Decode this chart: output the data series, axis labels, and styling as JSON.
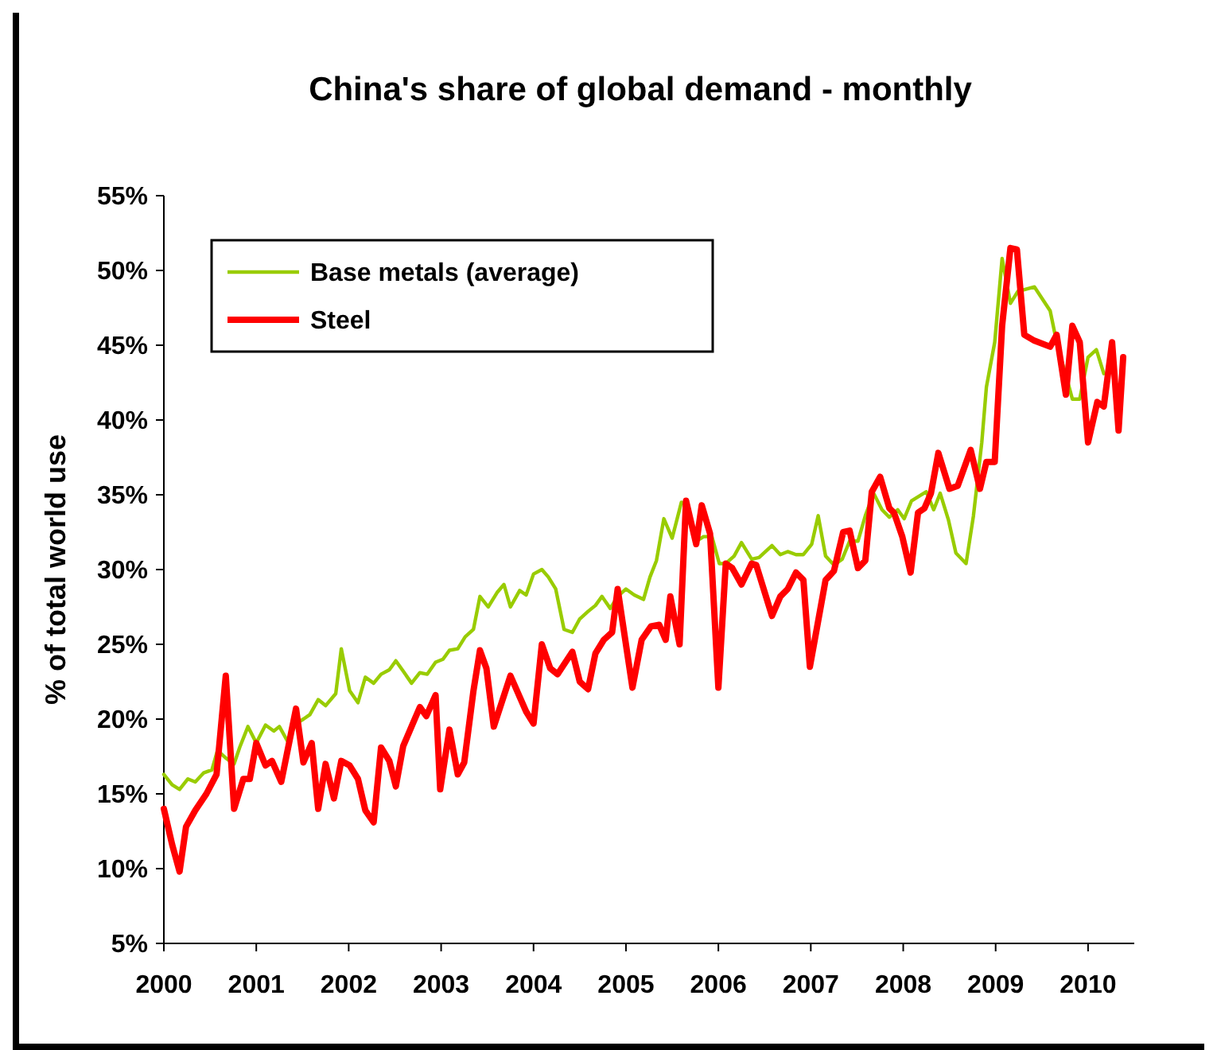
{
  "chart_data": {
    "type": "line",
    "title": "China's share of global demand - monthly",
    "ylabel": "% of total world use",
    "xlim": [
      2000,
      2010.5
    ],
    "xticks": [
      2000,
      2001,
      2002,
      2003,
      2004,
      2005,
      2006,
      2007,
      2008,
      2009,
      2010
    ],
    "ylim": [
      5,
      55
    ],
    "yticks": [
      {
        "value": 5,
        "label": "5%"
      },
      {
        "value": 10,
        "label": "10%"
      },
      {
        "value": 15,
        "label": "15%"
      },
      {
        "value": 20,
        "label": "20%"
      },
      {
        "value": 25,
        "label": "25%"
      },
      {
        "value": 30,
        "label": "30%"
      },
      {
        "value": 35,
        "label": "35%"
      },
      {
        "value": 40,
        "label": "40%"
      },
      {
        "value": 45,
        "label": "45%"
      },
      {
        "value": 50,
        "label": "50%"
      },
      {
        "value": 55,
        "label": "55%"
      }
    ],
    "grid": false,
    "legend": "top left",
    "marker": "none",
    "line_style": "solid",
    "series": [
      {
        "name": "Base metals (average)",
        "color": "#99cc00",
        "x": [
          2000.0,
          2000.09,
          2000.17,
          2000.26,
          2000.34,
          2000.43,
          2000.52,
          2000.58,
          2000.67,
          2000.76,
          2000.82,
          2000.91,
          2001.0,
          2001.1,
          2001.19,
          2001.25,
          2001.34,
          2001.43,
          2001.51,
          2001.58,
          2001.67,
          2001.75,
          2001.86,
          2001.92,
          2002.01,
          2002.1,
          2002.18,
          2002.27,
          2002.35,
          2002.44,
          2002.51,
          2002.59,
          2002.68,
          2002.77,
          2002.85,
          2002.94,
          2003.02,
          2003.09,
          2003.18,
          2003.26,
          2003.35,
          2003.42,
          2003.51,
          2003.61,
          2003.68,
          2003.75,
          2003.85,
          2003.92,
          2004.0,
          2004.09,
          2004.16,
          2004.24,
          2004.33,
          2004.42,
          2004.5,
          2004.59,
          2004.67,
          2004.74,
          2004.83,
          2004.91,
          2005.0,
          2005.09,
          2005.19,
          2005.26,
          2005.33,
          2005.41,
          2005.5,
          2005.6,
          2005.67,
          2005.76,
          2005.84,
          2005.93,
          2006.01,
          2006.08,
          2006.17,
          2006.25,
          2006.36,
          2006.44,
          2006.58,
          2006.67,
          2006.75,
          2006.84,
          2006.92,
          2007.01,
          2007.08,
          2007.16,
          2007.25,
          2007.34,
          2007.42,
          2007.51,
          2007.59,
          2007.68,
          2007.77,
          2007.85,
          2007.94,
          2008.01,
          2008.09,
          2008.25,
          2008.33,
          2008.4,
          2008.49,
          2008.57,
          2008.68,
          2008.76,
          2008.85,
          2008.9,
          2008.99,
          2009.07,
          2009.16,
          2009.24,
          2009.42,
          2009.59,
          2009.67,
          2009.76,
          2009.83,
          2009.91,
          2010.0,
          2010.09,
          2010.17
        ],
        "values": [
          16.3,
          15.6,
          15.3,
          16.0,
          15.8,
          16.4,
          16.6,
          17.9,
          17.4,
          17.0,
          18.1,
          19.5,
          18.4,
          19.6,
          19.2,
          19.5,
          18.5,
          19.7,
          20.0,
          20.3,
          21.3,
          20.9,
          21.7,
          24.7,
          21.9,
          21.1,
          22.8,
          22.4,
          23.0,
          23.3,
          23.9,
          23.2,
          22.4,
          23.1,
          23.0,
          23.8,
          24.0,
          24.6,
          24.7,
          25.5,
          26.0,
          28.2,
          27.5,
          28.5,
          29.0,
          27.5,
          28.6,
          28.3,
          29.7,
          30.0,
          29.5,
          28.7,
          26.0,
          25.8,
          26.7,
          27.2,
          27.6,
          28.2,
          27.4,
          28.2,
          28.7,
          28.3,
          28.0,
          29.5,
          30.6,
          33.4,
          32.1,
          34.5,
          34.3,
          31.9,
          32.2,
          32.2,
          30.4,
          30.4,
          30.9,
          31.8,
          30.7,
          30.8,
          31.6,
          31.0,
          31.2,
          31.0,
          31.0,
          31.7,
          33.6,
          30.9,
          30.3,
          30.7,
          31.9,
          31.9,
          33.6,
          35.1,
          34.0,
          33.5,
          34.0,
          33.4,
          34.6,
          35.2,
          34.0,
          35.1,
          33.3,
          31.1,
          30.4,
          33.6,
          38.5,
          42.2,
          45.2,
          50.8,
          47.8,
          48.6,
          48.9,
          47.3,
          44.9,
          43.0,
          41.4,
          41.4,
          44.2,
          44.7,
          43.1
        ]
      },
      {
        "name": "Steel",
        "color": "#ff0000",
        "x": [
          2000.0,
          2000.09,
          2000.17,
          2000.24,
          2000.34,
          2000.46,
          2000.57,
          2000.67,
          2000.76,
          2000.86,
          2000.93,
          2001.0,
          2001.1,
          2001.17,
          2001.27,
          2001.43,
          2001.51,
          2001.6,
          2001.67,
          2001.75,
          2001.84,
          2001.92,
          2002.01,
          2002.1,
          2002.18,
          2002.27,
          2002.35,
          2002.44,
          2002.51,
          2002.59,
          2002.68,
          2002.77,
          2002.84,
          2002.94,
          2002.99,
          2003.09,
          2003.18,
          2003.25,
          2003.35,
          2003.42,
          2003.49,
          2003.57,
          2003.75,
          2003.92,
          2004.0,
          2004.09,
          2004.18,
          2004.26,
          2004.42,
          2004.5,
          2004.59,
          2004.67,
          2004.76,
          2004.85,
          2004.91,
          2004.98,
          2005.07,
          2005.17,
          2005.27,
          2005.36,
          2005.43,
          2005.48,
          2005.58,
          2005.65,
          2005.76,
          2005.82,
          2005.91,
          2006.0,
          2006.08,
          2006.15,
          2006.25,
          2006.36,
          2006.41,
          2006.58,
          2006.67,
          2006.75,
          2006.84,
          2006.92,
          2006.99,
          2007.16,
          2007.25,
          2007.35,
          2007.42,
          2007.51,
          2007.59,
          2007.66,
          2007.75,
          2007.85,
          2007.9,
          2007.99,
          2008.08,
          2008.16,
          2008.23,
          2008.3,
          2008.38,
          2008.5,
          2008.59,
          2008.73,
          2008.83,
          2008.9,
          2008.99,
          2009.07,
          2009.16,
          2009.23,
          2009.31,
          2009.42,
          2009.59,
          2009.66,
          2009.76,
          2009.83,
          2009.91,
          2010.0,
          2010.1,
          2010.17,
          2010.26,
          2010.33,
          2010.38
        ],
        "values": [
          14.0,
          11.6,
          9.8,
          12.8,
          13.9,
          15.0,
          16.3,
          22.9,
          14.0,
          16.0,
          16.0,
          18.4,
          16.9,
          17.2,
          15.8,
          20.7,
          17.1,
          18.4,
          14.0,
          17.0,
          14.7,
          17.2,
          16.9,
          16.0,
          13.9,
          13.1,
          18.1,
          17.2,
          15.5,
          18.2,
          19.5,
          20.8,
          20.2,
          21.6,
          15.3,
          19.3,
          16.3,
          17.1,
          21.9,
          24.6,
          23.4,
          19.5,
          22.9,
          20.5,
          19.7,
          25.0,
          23.4,
          23.0,
          24.5,
          22.5,
          22.0,
          24.4,
          25.3,
          25.8,
          28.7,
          25.8,
          22.1,
          25.3,
          26.2,
          26.3,
          25.3,
          28.2,
          25.0,
          34.6,
          31.7,
          34.3,
          32.4,
          22.1,
          30.4,
          30.1,
          29.0,
          30.4,
          30.3,
          26.9,
          28.2,
          28.7,
          29.8,
          29.3,
          23.5,
          29.3,
          29.9,
          32.5,
          32.6,
          30.1,
          30.6,
          35.2,
          36.2,
          34.1,
          33.8,
          32.2,
          29.8,
          33.8,
          34.1,
          35.1,
          37.8,
          35.4,
          35.6,
          38.0,
          35.4,
          37.2,
          37.2,
          46.3,
          51.5,
          51.4,
          45.7,
          45.3,
          44.9,
          45.7,
          41.7,
          46.3,
          45.2,
          38.5,
          41.2,
          40.9,
          45.2,
          39.3,
          44.2
        ]
      }
    ]
  }
}
